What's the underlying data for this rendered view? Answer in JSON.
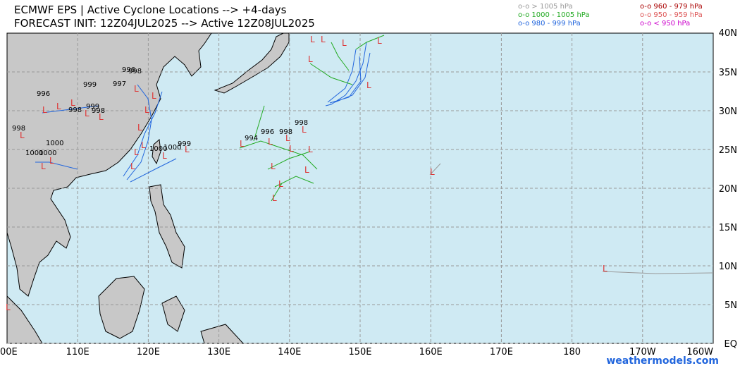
{
  "header": {
    "title": "ECMWF EPS | Active Cyclone Locations --> +4-days",
    "subtitle": "FORECAST INIT: 12Z04JUL2025 --> Active 12Z08JUL2025"
  },
  "legend": [
    {
      "label": "o-o > 1005 hPa",
      "color": "#999999"
    },
    {
      "label": "o-o 1000 - 1005 hPa",
      "color": "#22aa22"
    },
    {
      "label": "o-o 980 - 999 hPa",
      "color": "#2266dd"
    },
    {
      "label": "o-o 960 - 979 hPa",
      "color": "#aa0000"
    },
    {
      "label": "o-o 950 - 959 hPa",
      "color": "#dd5555"
    },
    {
      "label": "o-o < 950 hPa",
      "color": "#cc00cc"
    }
  ],
  "axes": {
    "lon_labels": [
      "00E",
      "110E",
      "120E",
      "130E",
      "140E",
      "150E",
      "160E",
      "170E",
      "180",
      "170W",
      "160W"
    ],
    "lat_labels": [
      "40N",
      "35N",
      "30N",
      "25N",
      "20N",
      "15N",
      "10N",
      "5N",
      "EQ"
    ]
  },
  "pressure_labels": [
    "998",
    "996",
    "1000",
    "999",
    "998",
    "999",
    "998",
    "996",
    "997",
    "998",
    "1000",
    "1000",
    "1000",
    "1000",
    "999",
    "994",
    "996",
    "998",
    "998"
  ],
  "watermark": "weathermodels.com"
}
